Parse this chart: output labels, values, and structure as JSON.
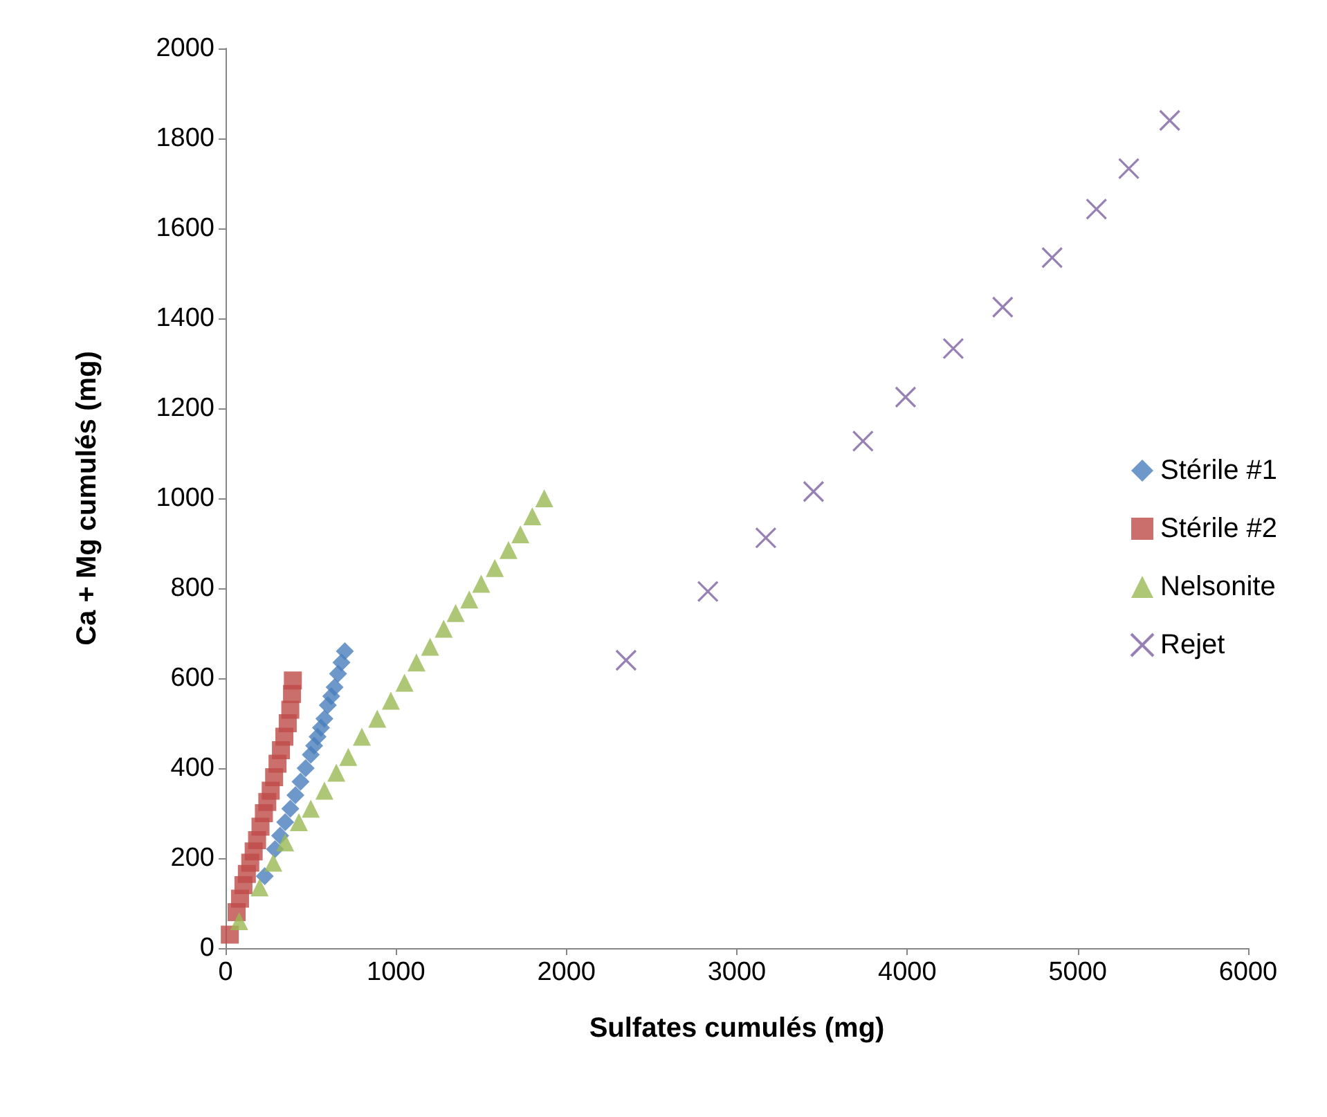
{
  "chart_data": {
    "type": "scatter",
    "xlabel": "Sulfates cumulés (mg)",
    "ylabel": "Ca + Mg cumulés (mg)",
    "xlim": [
      0,
      6000
    ],
    "ylim": [
      0,
      2000
    ],
    "xticks": [
      0,
      1000,
      2000,
      3000,
      4000,
      5000,
      6000
    ],
    "yticks": [
      0,
      200,
      400,
      600,
      800,
      1000,
      1200,
      1400,
      1600,
      1800,
      2000
    ],
    "grid": false,
    "legend": "right",
    "series": [
      {
        "name": "Stérile #1",
        "color": "#4a7ebb",
        "marker": "diamond",
        "x": [
          230,
          290,
          320,
          350,
          380,
          410,
          440,
          470,
          500,
          520,
          540,
          560,
          580,
          600,
          620,
          640,
          660,
          680,
          700
        ],
        "values": [
          160,
          220,
          250,
          280,
          310,
          340,
          370,
          400,
          430,
          450,
          470,
          490,
          510,
          540,
          560,
          580,
          610,
          635,
          660
        ]
      },
      {
        "name": "Stérile #2",
        "color": "#be4b48",
        "marker": "square",
        "x": [
          25,
          65,
          85,
          105,
          125,
          145,
          165,
          185,
          205,
          225,
          245,
          265,
          285,
          305,
          325,
          345,
          365,
          380,
          390,
          395
        ],
        "values": [
          30,
          80,
          110,
          140,
          165,
          190,
          215,
          240,
          270,
          300,
          325,
          350,
          380,
          410,
          440,
          470,
          500,
          530,
          565,
          595
        ]
      },
      {
        "name": "Nelsonite",
        "color": "#98b954",
        "marker": "triangle",
        "x": [
          80,
          200,
          280,
          350,
          430,
          500,
          580,
          650,
          720,
          800,
          890,
          970,
          1050,
          1120,
          1200,
          1280,
          1350,
          1430,
          1500,
          1580,
          1660,
          1730,
          1800,
          1870
        ],
        "values": [
          60,
          135,
          190,
          235,
          280,
          310,
          350,
          390,
          425,
          470,
          510,
          550,
          590,
          635,
          670,
          710,
          745,
          775,
          810,
          845,
          885,
          920,
          960,
          1000
        ]
      },
      {
        "name": "Rejet",
        "color": "#7d60a0",
        "marker": "cross",
        "x": [
          2350,
          2830,
          3170,
          3450,
          3740,
          3990,
          4270,
          4560,
          4850,
          5110,
          5300,
          5540
        ],
        "values": [
          640,
          793,
          912,
          1015,
          1127,
          1225,
          1333,
          1425,
          1535,
          1643,
          1733,
          1840
        ]
      }
    ]
  }
}
